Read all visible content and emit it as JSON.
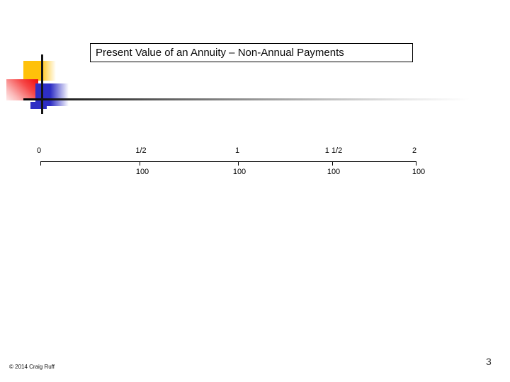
{
  "slide": {
    "title": "Present Value of an Annuity – Non-Annual Payments",
    "footer": "© 2014 Craig Ruff",
    "page_number": "3"
  },
  "timeline": {
    "type": "cash-flow-timeline",
    "period_labels": [
      "0",
      "1/2",
      "1",
      "1 1/2",
      "2"
    ],
    "payment_labels": [
      "100",
      "100",
      "100",
      "100"
    ]
  },
  "decoration": {
    "yellow": "#FFC10A",
    "red": "#EE0A0A",
    "blue": "#2E2EC4",
    "line_black": "#151515"
  }
}
